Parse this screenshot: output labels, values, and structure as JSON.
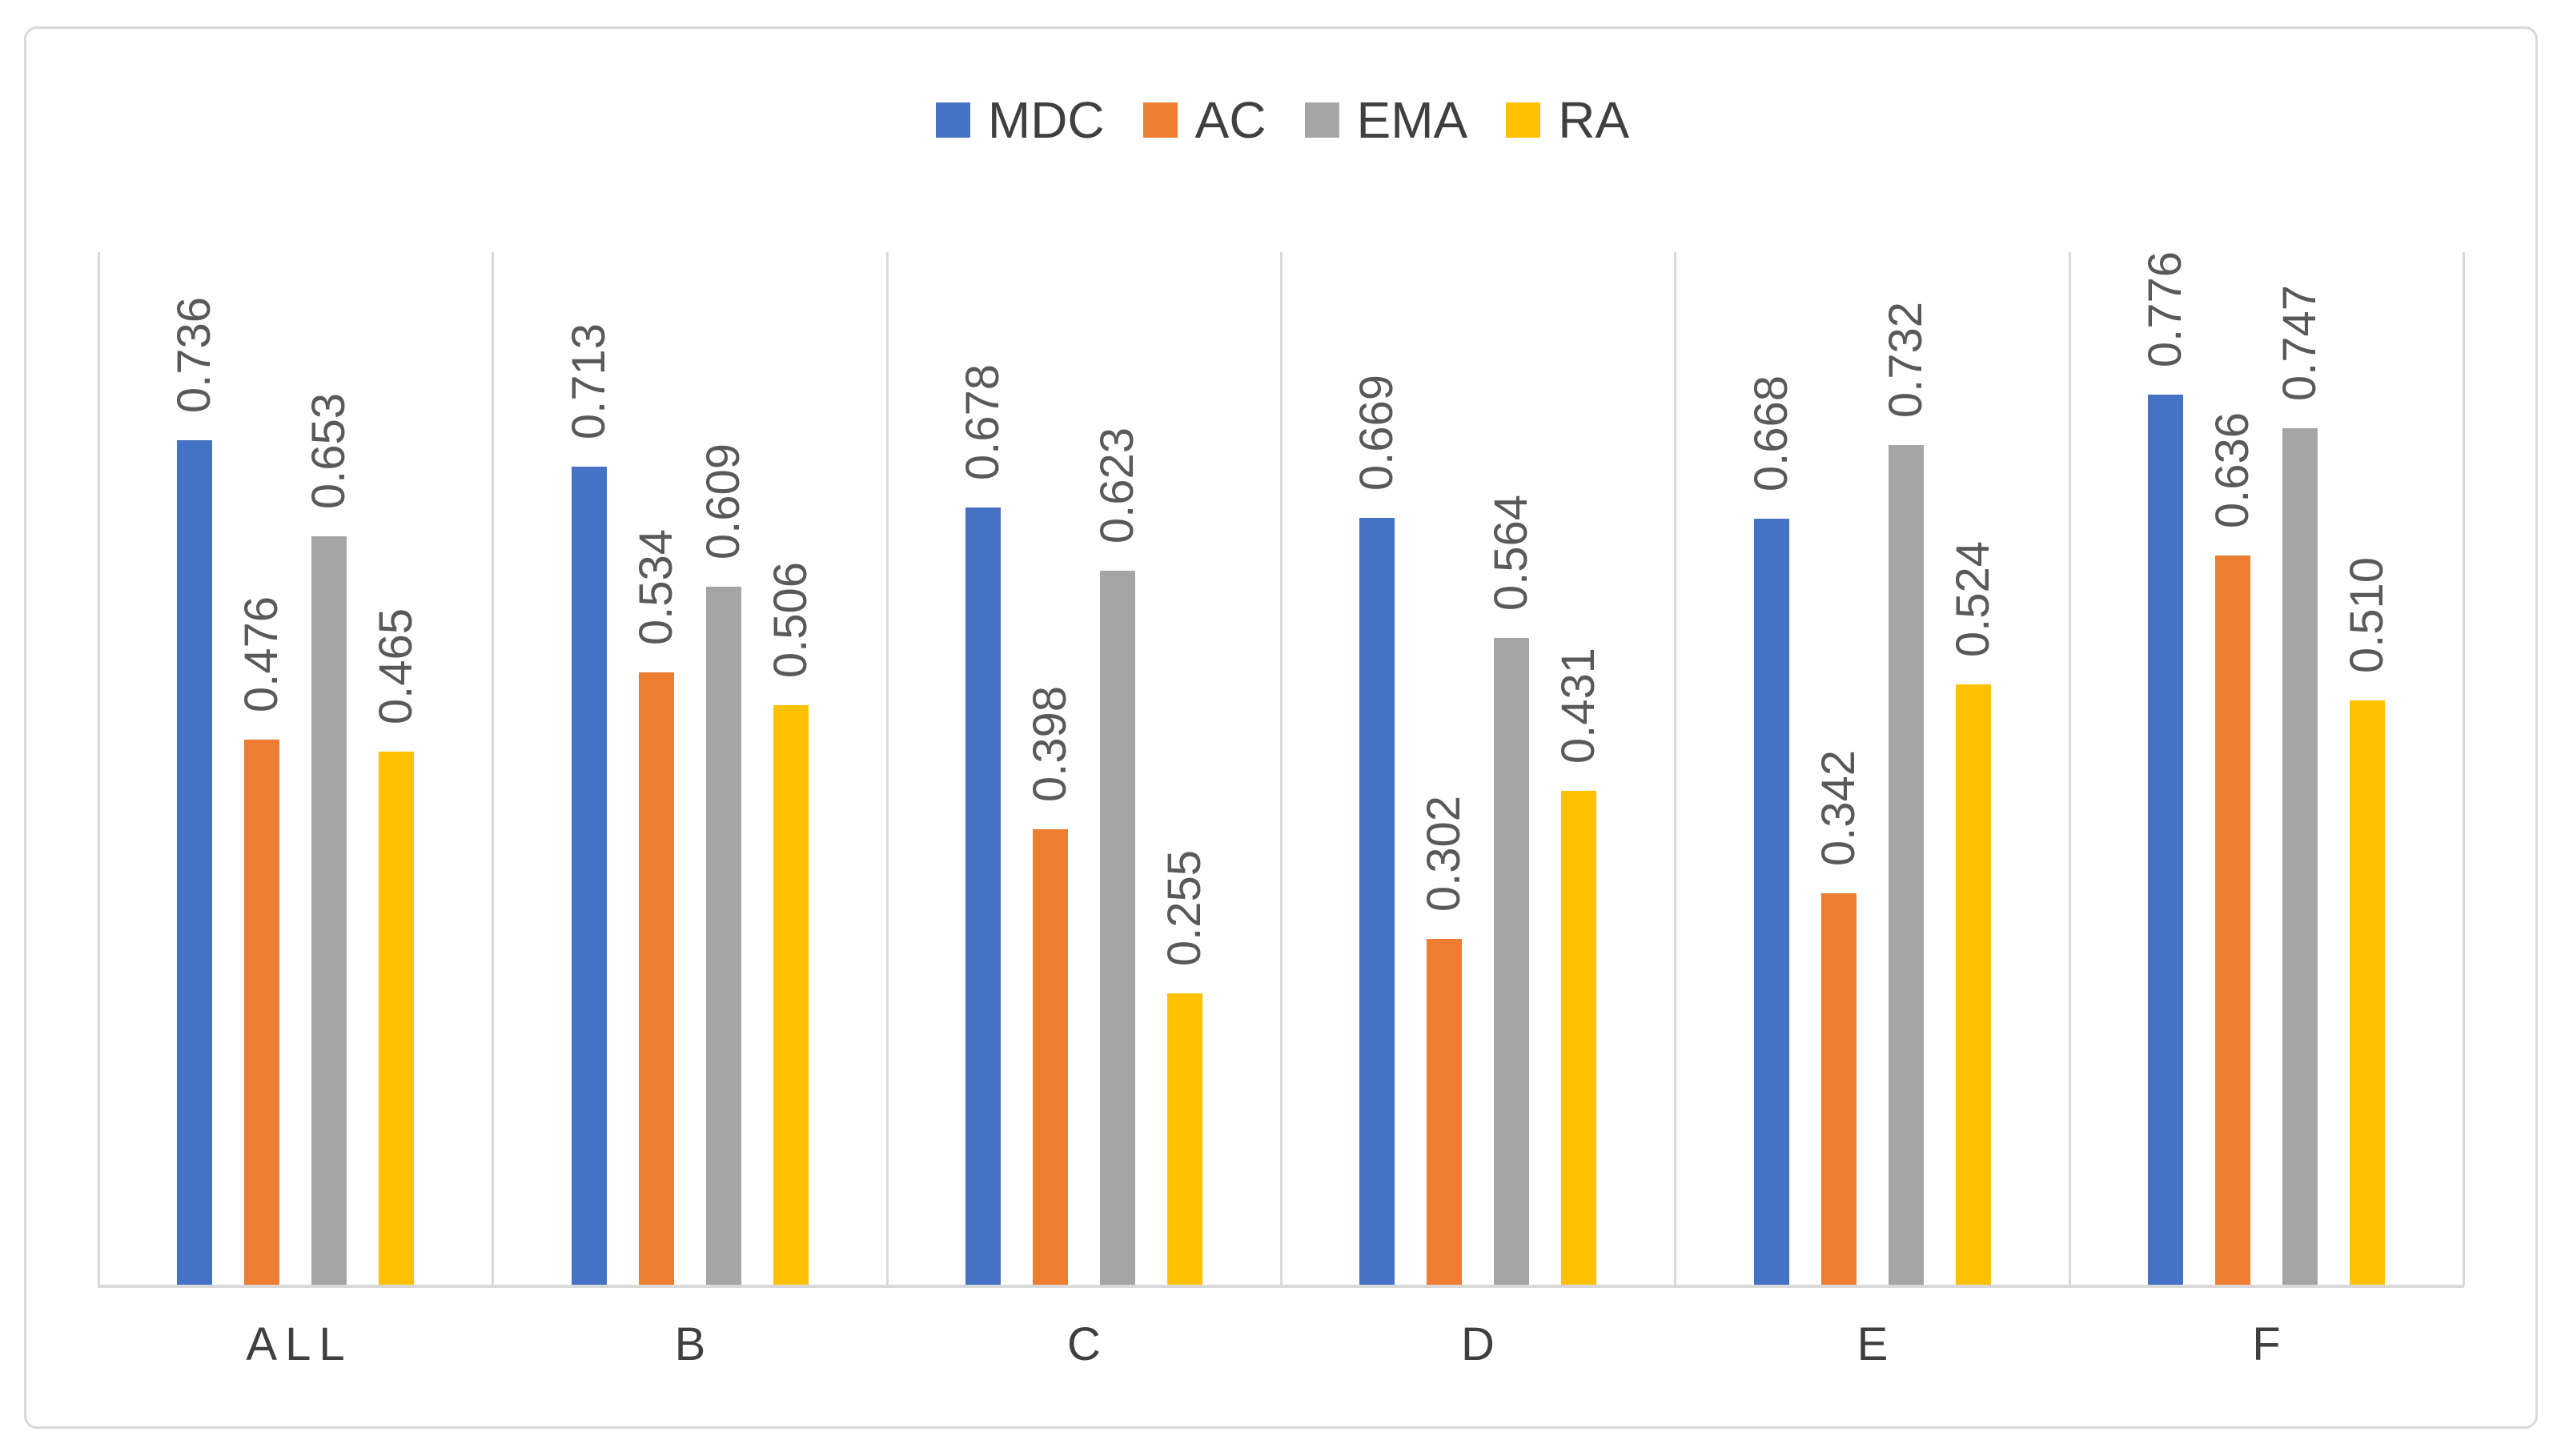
{
  "chart": {
    "frame_border_color": "#D9D9D9",
    "background": "#FFFFFF"
  },
  "chart_data": {
    "type": "bar",
    "title": "",
    "xlabel": "",
    "ylabel": "",
    "categories": [
      "ALL",
      "B",
      "C",
      "D",
      "E",
      "F"
    ],
    "series": [
      {
        "name": "MDC",
        "color": "#4472C4",
        "values": [
          0.736,
          0.713,
          0.678,
          0.669,
          0.668,
          0.776
        ],
        "data_labels": [
          "0.736",
          "0.713",
          "0.678",
          "0.669",
          "0.668",
          "0.776"
        ]
      },
      {
        "name": "AC",
        "color": "#ED7D31",
        "values": [
          0.476,
          0.534,
          0.398,
          0.302,
          0.342,
          0.636
        ],
        "data_labels": [
          "0.476",
          "0.534",
          "0.398",
          "0.302",
          "0.342",
          "0.636"
        ]
      },
      {
        "name": "EMA",
        "color": "#A5A5A5",
        "values": [
          0.653,
          0.609,
          0.623,
          0.564,
          0.732,
          0.747
        ],
        "data_labels": [
          "0.653",
          "0.609",
          "0.623",
          "0.564",
          "0.732",
          "0.747"
        ]
      },
      {
        "name": "RA",
        "color": "#FFC000",
        "values": [
          0.465,
          0.506,
          0.255,
          0.431,
          0.524,
          0.51
        ],
        "data_labels": [
          "0.465",
          "0.506",
          "0.255",
          "0.431",
          "0.524",
          "0.510"
        ]
      }
    ],
    "ylim": [
      0,
      0.9
    ],
    "grid": {
      "horizontal": false,
      "vertical_category_separators": true
    },
    "legend_position": "top-center",
    "data_label_rotation": 270,
    "data_label_color": "#595959",
    "category_label_color": "#3F3F3F",
    "legend_text_color": "#3F3F3F",
    "gridline_color": "#D9D9D9",
    "axis_line_color": "#D9D9D9"
  }
}
